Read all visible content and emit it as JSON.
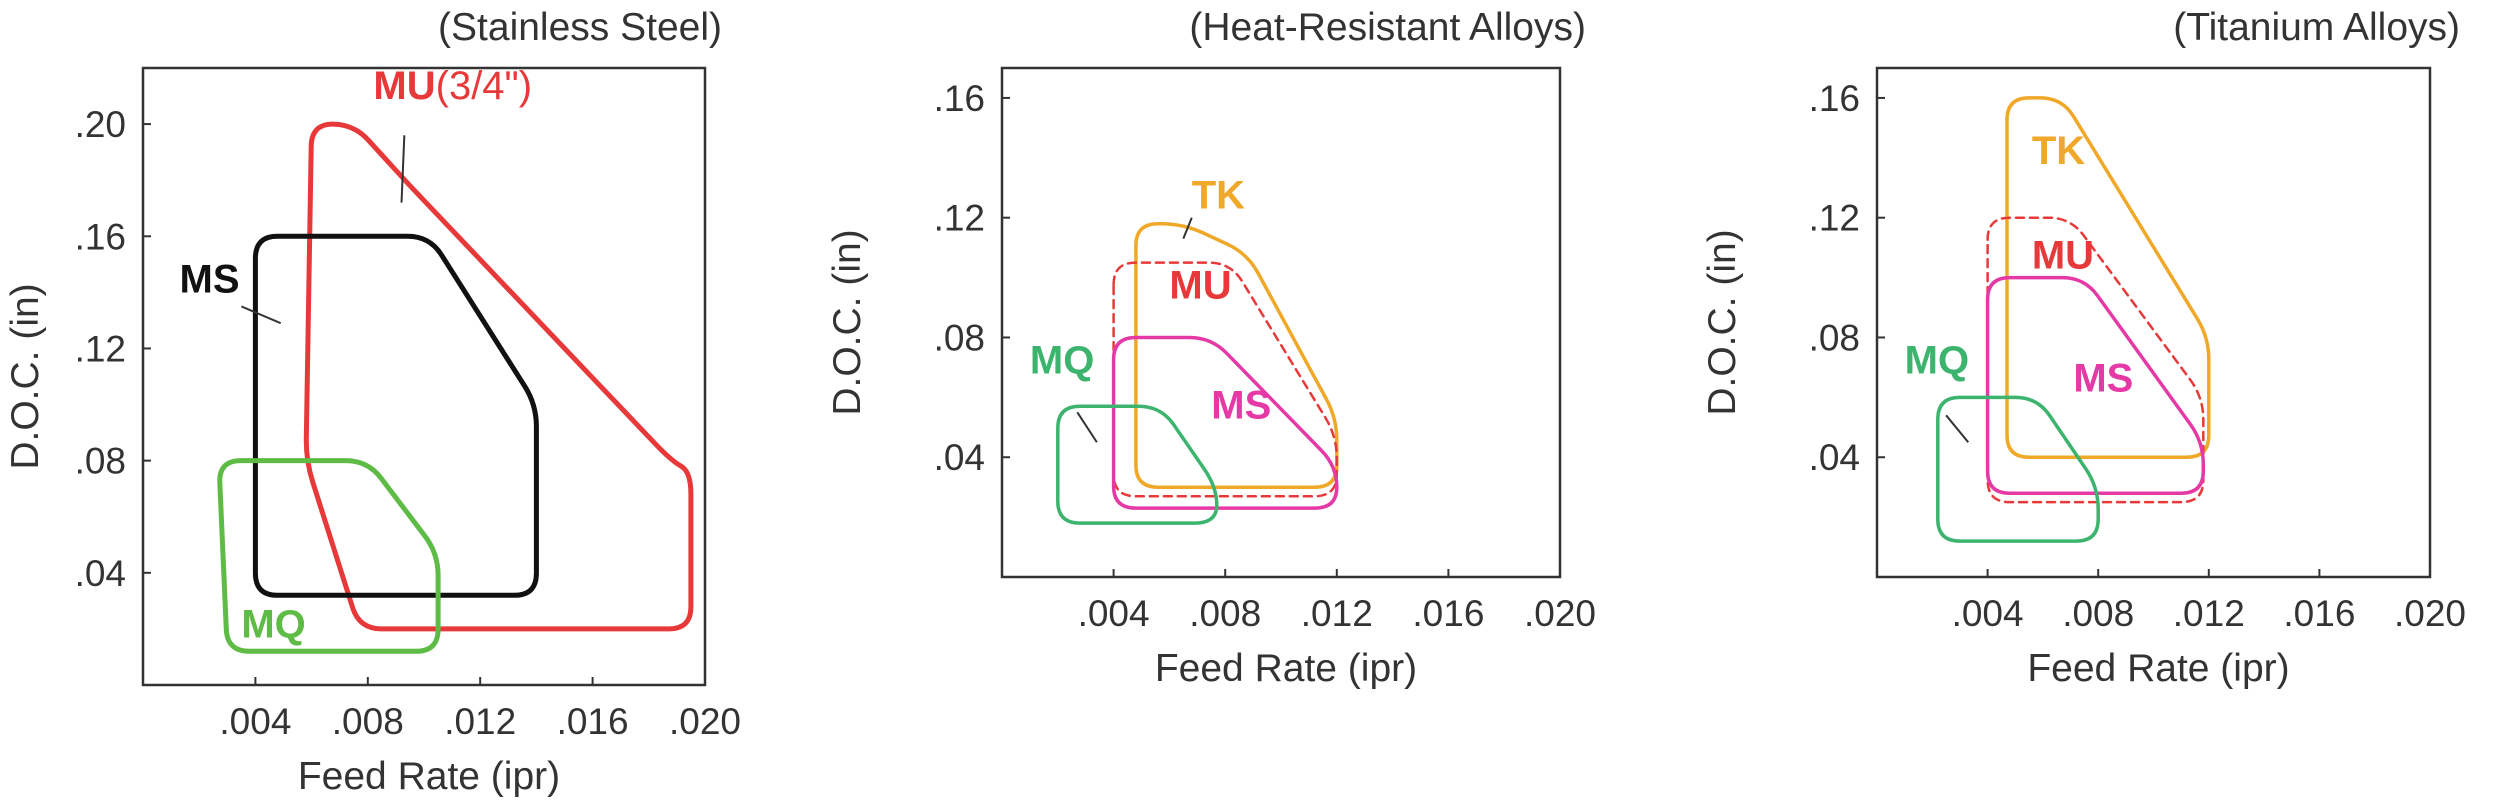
{
  "chart_data": [
    {
      "type": "area",
      "title": "(Stainless Steel)",
      "xlabel": "Feed Rate (ipr)",
      "ylabel": "D.O.C. (in)",
      "xlim": [
        0,
        0.02
      ],
      "ylim": [
        0,
        0.22
      ],
      "x_ticks": [
        ".004",
        ".008",
        ".012",
        ".016",
        ".020"
      ],
      "y_ticks": [
        ".04",
        ".08",
        ".12",
        ".16",
        ".20"
      ],
      "grid": false,
      "series": [
        {
          "name": "MU",
          "suffix": "(3/4\")",
          "color": "#e8393a",
          "style": "solid",
          "stroke_width": 5,
          "label_pos": [
            0.0082,
            0.209
          ],
          "leader": [
            [
              0.0093,
              0.196
            ],
            [
              0.0092,
              0.172
            ]
          ],
          "points": [
            [
              0.006,
              0.2
            ],
            [
              0.0075,
              0.2
            ],
            [
              0.0095,
              0.178
            ],
            [
              0.0188,
              0.08
            ],
            [
              0.0195,
              0.076
            ],
            [
              0.0195,
              0.02
            ],
            [
              0.0077,
              0.02
            ],
            [
              0.0058,
              0.08
            ],
            [
              0.006,
              0.2
            ]
          ]
        },
        {
          "name": "MS",
          "color": "#111111",
          "style": "solid",
          "stroke_width": 5,
          "label_pos": [
            0.0013,
            0.14
          ],
          "leader": [
            [
              0.0035,
              0.135
            ],
            [
              0.0049,
              0.129
            ]
          ],
          "points": [
            [
              0.004,
              0.16
            ],
            [
              0.0102,
              0.16
            ],
            [
              0.014,
              0.1
            ],
            [
              0.014,
              0.032
            ],
            [
              0.004,
              0.032
            ],
            [
              0.004,
              0.16
            ]
          ]
        },
        {
          "name": "MQ",
          "color": "#5dbb46",
          "style": "solid",
          "stroke_width": 5,
          "label_pos": [
            0.0035,
            0.017
          ],
          "leader": null,
          "points": [
            [
              0.0027,
              0.08
            ],
            [
              0.008,
              0.08
            ],
            [
              0.0105,
              0.047
            ],
            [
              0.0105,
              0.012
            ],
            [
              0.003,
              0.012
            ],
            [
              0.0027,
              0.08
            ]
          ]
        }
      ]
    },
    {
      "type": "area",
      "title": "(Heat-Resistant Alloys)",
      "xlabel": "Feed Rate (ipr)",
      "ylabel": "D.O.C. (in)",
      "xlim": [
        0,
        0.02
      ],
      "ylim": [
        0,
        0.17
      ],
      "x_ticks": [
        ".004",
        ".008",
        ".012",
        ".016",
        ".020"
      ],
      "y_ticks": [
        ".04",
        ".08",
        ".12",
        ".16"
      ],
      "grid": false,
      "series": [
        {
          "name": "TK",
          "color": "#f0a829",
          "style": "solid",
          "stroke_width": 3.5,
          "label_pos": [
            0.0068,
            0.123
          ],
          "leader": [
            [
              0.0068,
              0.12
            ],
            [
              0.0065,
              0.113
            ]
          ],
          "points": [
            [
              0.0048,
              0.118
            ],
            [
              0.0065,
              0.118
            ],
            [
              0.0088,
              0.108
            ],
            [
              0.012,
              0.053
            ],
            [
              0.012,
              0.03
            ],
            [
              0.0048,
              0.03
            ],
            [
              0.0048,
              0.118
            ]
          ]
        },
        {
          "name": "MU",
          "color": "#e8393a",
          "style": "dashed",
          "stroke_width": 2.5,
          "label_pos": [
            0.006,
            0.093
          ],
          "leader": null,
          "points": [
            [
              0.004,
              0.105
            ],
            [
              0.0082,
              0.105
            ],
            [
              0.012,
              0.047
            ],
            [
              0.012,
              0.027
            ],
            [
              0.004,
              0.027
            ],
            [
              0.004,
              0.105
            ]
          ]
        },
        {
          "name": "MS",
          "color": "#e53aa6",
          "style": "solid",
          "stroke_width": 3.5,
          "label_pos": [
            0.0075,
            0.053
          ],
          "leader": null,
          "points": [
            [
              0.004,
              0.08
            ],
            [
              0.0075,
              0.08
            ],
            [
              0.012,
              0.037
            ],
            [
              0.012,
              0.023
            ],
            [
              0.004,
              0.023
            ],
            [
              0.004,
              0.08
            ]
          ]
        },
        {
          "name": "MQ",
          "color": "#3cb46e",
          "style": "solid",
          "stroke_width": 3.5,
          "label_pos": [
            0.001,
            0.068
          ],
          "leader": [
            [
              0.0027,
              0.055
            ],
            [
              0.0034,
              0.045
            ]
          ],
          "points": [
            [
              0.002,
              0.057
            ],
            [
              0.0057,
              0.057
            ],
            [
              0.0077,
              0.03
            ],
            [
              0.0077,
              0.018
            ],
            [
              0.002,
              0.018
            ],
            [
              0.002,
              0.057
            ]
          ]
        }
      ]
    },
    {
      "type": "area",
      "title": "(Titanium Alloys)",
      "xlabel": "Feed Rate (ipr)",
      "ylabel": "D.O.C. (in)",
      "xlim": [
        0,
        0.02
      ],
      "ylim": [
        0,
        0.17
      ],
      "x_ticks": [
        ".004",
        ".008",
        ".012",
        ".016",
        ".020"
      ],
      "y_ticks": [
        ".04",
        ".08",
        ".12",
        ".16"
      ],
      "grid": false,
      "series": [
        {
          "name": "TK",
          "color": "#f0a829",
          "style": "solid",
          "stroke_width": 3.5,
          "label_pos": [
            0.0056,
            0.138
          ],
          "leader": null,
          "points": [
            [
              0.0047,
              0.16
            ],
            [
              0.0067,
              0.16
            ],
            [
              0.012,
              0.08
            ],
            [
              0.012,
              0.04
            ],
            [
              0.0047,
              0.04
            ],
            [
              0.0047,
              0.16
            ]
          ]
        },
        {
          "name": "MU",
          "color": "#e8393a",
          "style": "dashed",
          "stroke_width": 2.5,
          "label_pos": [
            0.0056,
            0.103
          ],
          "leader": null,
          "points": [
            [
              0.004,
              0.12
            ],
            [
              0.007,
              0.12
            ],
            [
              0.0118,
              0.06
            ],
            [
              0.0118,
              0.025
            ],
            [
              0.004,
              0.025
            ],
            [
              0.004,
              0.12
            ]
          ]
        },
        {
          "name": "MS",
          "color": "#e53aa6",
          "style": "solid",
          "stroke_width": 3.5,
          "label_pos": [
            0.0071,
            0.062
          ],
          "leader": null,
          "points": [
            [
              0.004,
              0.1
            ],
            [
              0.0075,
              0.1
            ],
            [
              0.0118,
              0.045
            ],
            [
              0.0118,
              0.028
            ],
            [
              0.004,
              0.028
            ],
            [
              0.004,
              0.1
            ]
          ]
        },
        {
          "name": "MQ",
          "color": "#3cb46e",
          "style": "solid",
          "stroke_width": 3.5,
          "label_pos": [
            0.001,
            0.068
          ],
          "leader": [
            [
              0.0025,
              0.054
            ],
            [
              0.0033,
              0.045
            ]
          ],
          "points": [
            [
              0.0022,
              0.06
            ],
            [
              0.0058,
              0.06
            ],
            [
              0.008,
              0.03
            ],
            [
              0.008,
              0.012
            ],
            [
              0.0022,
              0.012
            ],
            [
              0.0022,
              0.06
            ]
          ]
        }
      ]
    }
  ]
}
